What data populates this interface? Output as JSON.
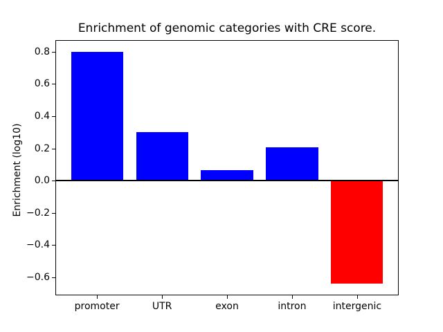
{
  "chart_data": {
    "type": "bar",
    "title": "Enrichment of genomic categories with CRE score.",
    "xlabel": "",
    "ylabel": "Enrichment (log10)",
    "categories": [
      "promoter",
      "UTR",
      "exon",
      "intron",
      "intergenic"
    ],
    "values": [
      0.8,
      0.3,
      0.065,
      0.205,
      -0.64
    ],
    "bar_colors": [
      "#0000ff",
      "#0000ff",
      "#0000ff",
      "#0000ff",
      "#ff0000"
    ],
    "positive_color": "#0000ff",
    "negative_color": "#ff0000",
    "yticks": [
      0.8,
      0.6,
      0.4,
      0.2,
      0.0,
      -0.2,
      -0.4,
      -0.6
    ],
    "ytick_labels": [
      "0.8",
      "0.6",
      "0.4",
      "0.2",
      "0.0",
      "−0.2",
      "−0.4",
      "−0.6"
    ],
    "ylim": [
      -0.712,
      0.872
    ],
    "bar_width_fraction": 0.8,
    "grid": false,
    "legend": "none",
    "zero_line": true,
    "axis_color": "#000000",
    "background_color": "#ffffff"
  }
}
